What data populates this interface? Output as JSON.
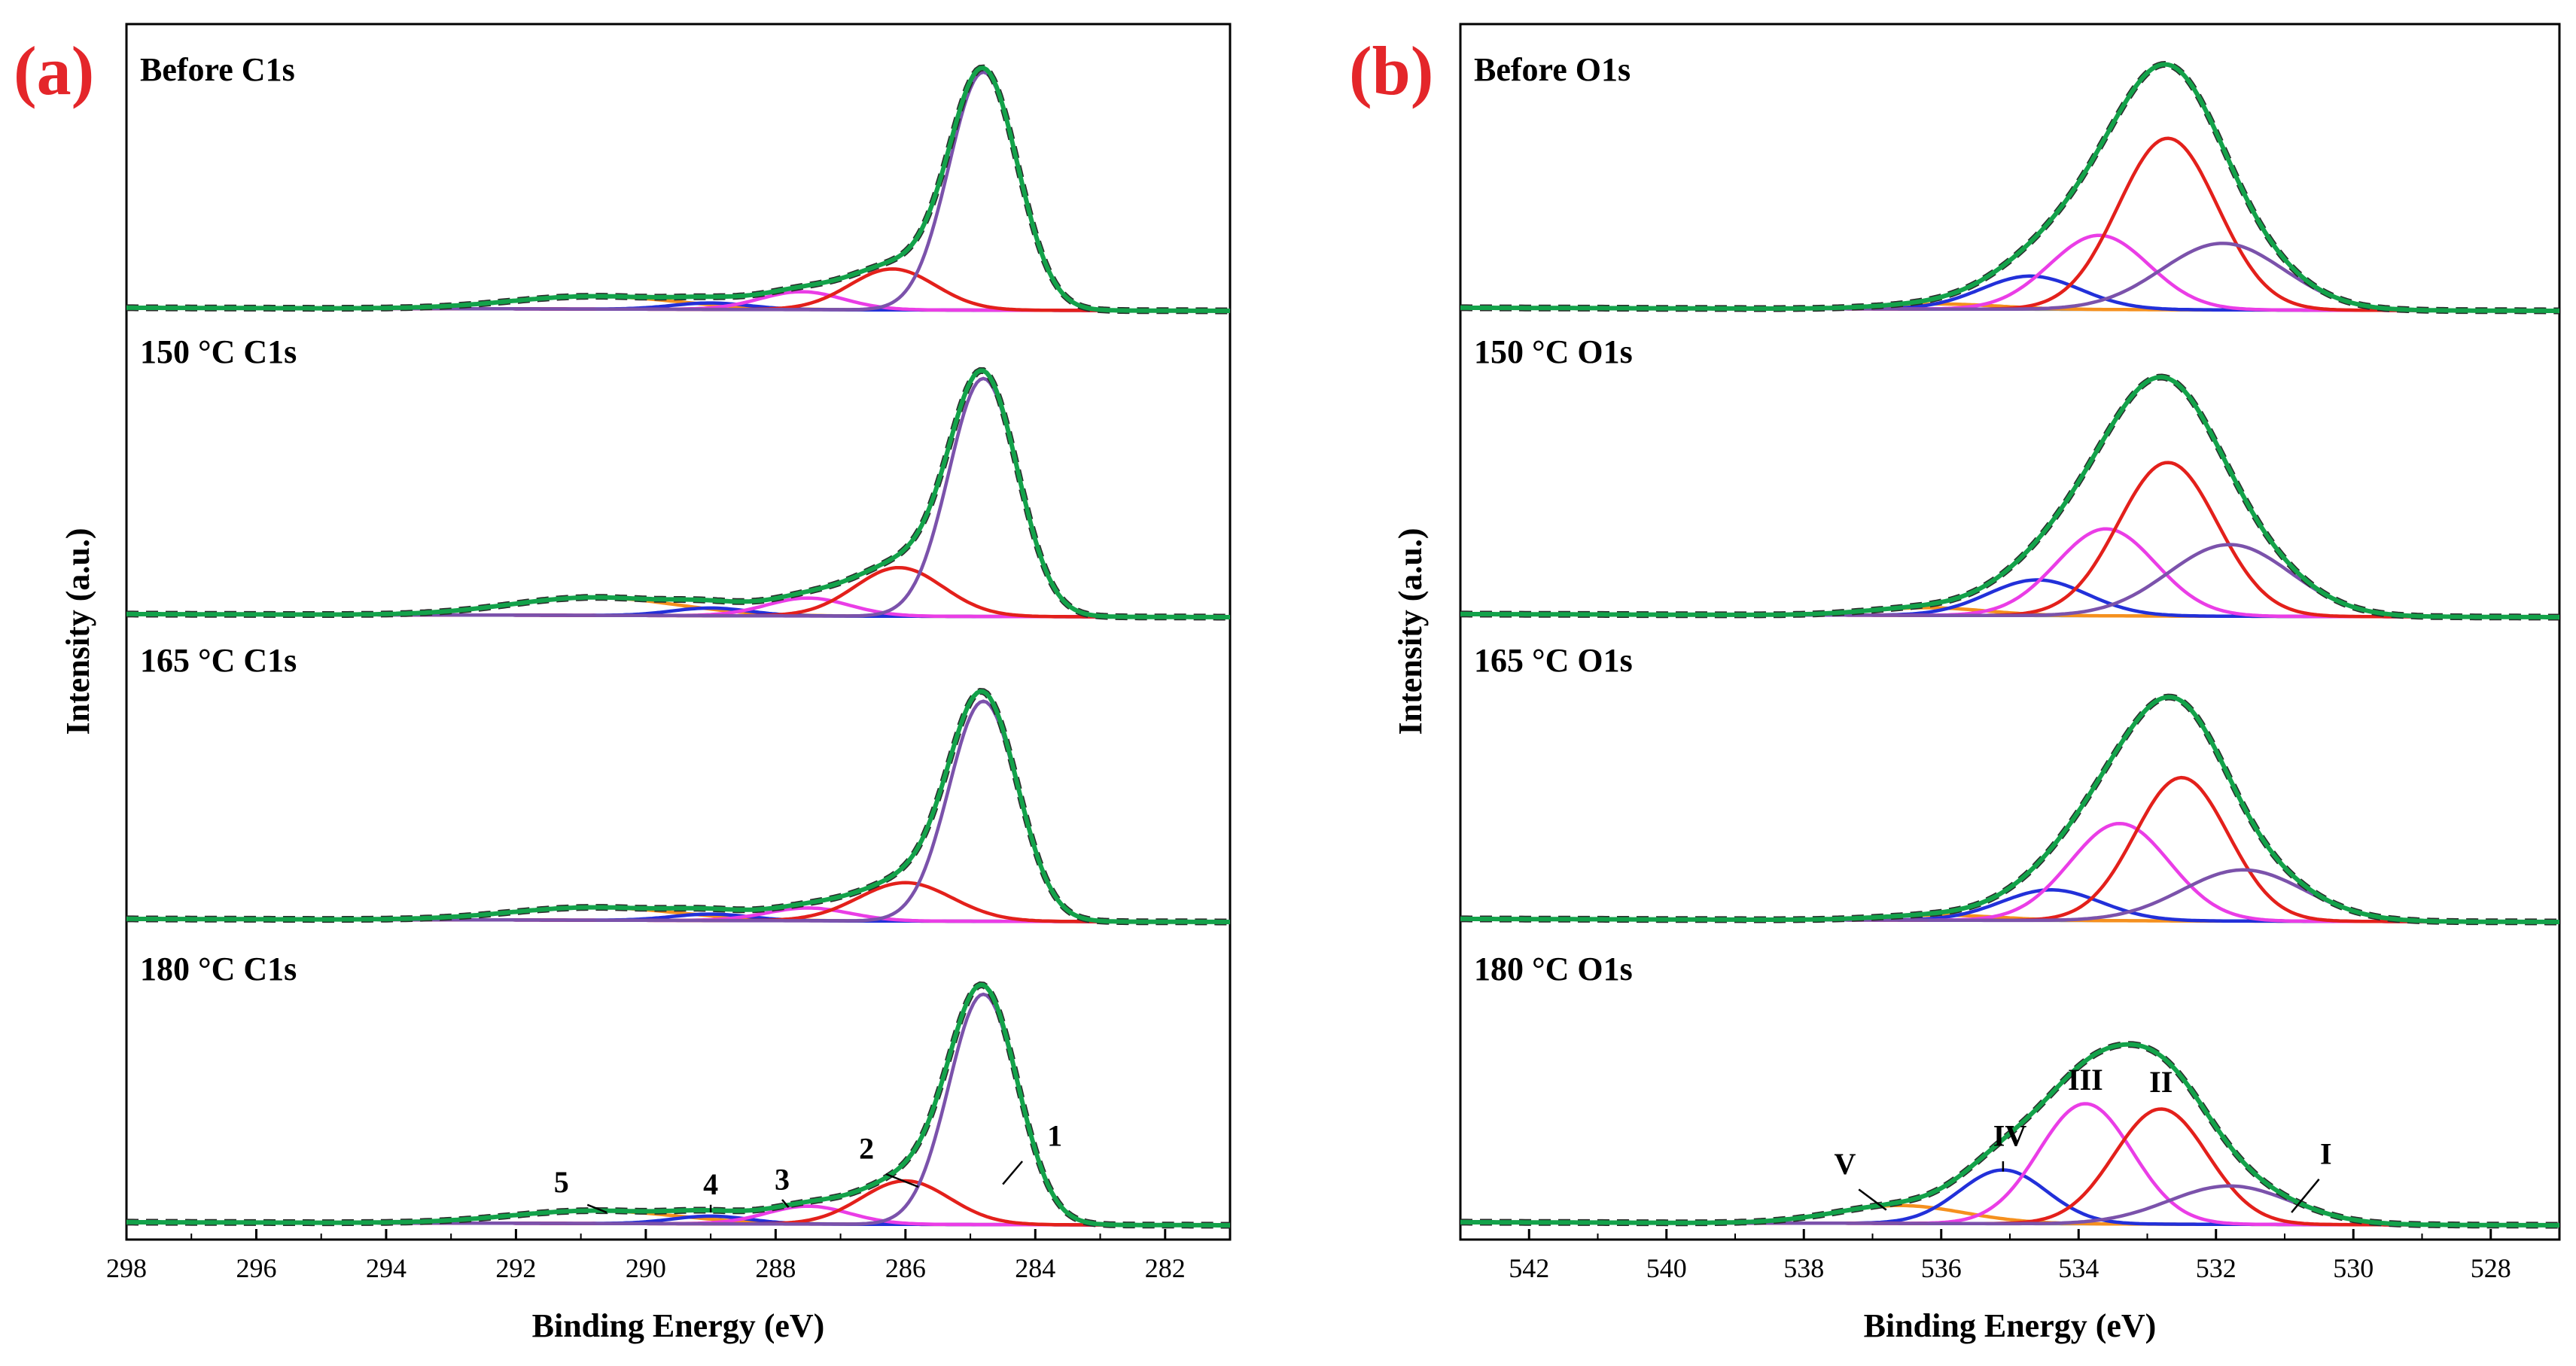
{
  "chart_data": [
    {
      "type": "line",
      "panel_label": "(a)",
      "xlabel": "Binding Energy (eV)",
      "ylabel": "Intensity (a.u.)",
      "xlim": [
        298,
        281
      ],
      "xticks": [
        "298",
        "296",
        "294",
        "292",
        "290",
        "288",
        "286",
        "284",
        "282"
      ],
      "series_colors": {
        "envelope": "#13a24a",
        "raw": "#2b2b2b",
        "baseline": "#8a8a8a",
        "1": "#7b52ab",
        "2": "#e3201b",
        "3": "#ea3de6",
        "4": "#2230d9",
        "5": "#f5901e"
      },
      "rows": [
        {
          "label": "Before C1s",
          "peaks": [
            {
              "name": "1",
              "center": 284.8,
              "amp": 0.93,
              "fwhm": 1.25
            },
            {
              "name": "2",
              "center": 286.2,
              "amp": 0.16,
              "fwhm": 1.55
            },
            {
              "name": "3",
              "center": 287.6,
              "amp": 0.07,
              "fwhm": 1.5
            },
            {
              "name": "4",
              "center": 289.0,
              "amp": 0.025,
              "fwhm": 1.4
            },
            {
              "name": "5",
              "center": 290.8,
              "amp": 0.05,
              "fwhm": 3.0
            }
          ]
        },
        {
          "label": "150 °C C1s",
          "peaks": [
            {
              "name": "1",
              "center": 284.8,
              "amp": 0.93,
              "fwhm": 1.25
            },
            {
              "name": "2",
              "center": 286.1,
              "amp": 0.19,
              "fwhm": 1.6
            },
            {
              "name": "3",
              "center": 287.5,
              "amp": 0.07,
              "fwhm": 1.5
            },
            {
              "name": "4",
              "center": 289.0,
              "amp": 0.03,
              "fwhm": 1.4
            },
            {
              "name": "5",
              "center": 290.8,
              "amp": 0.07,
              "fwhm": 3.0
            }
          ]
        },
        {
          "label": "165 °C C1s",
          "peaks": [
            {
              "name": "1",
              "center": 284.8,
              "amp": 0.86,
              "fwhm": 1.25
            },
            {
              "name": "2",
              "center": 286.0,
              "amp": 0.15,
              "fwhm": 1.7
            },
            {
              "name": "3",
              "center": 287.5,
              "amp": 0.05,
              "fwhm": 1.5
            },
            {
              "name": "4",
              "center": 289.0,
              "amp": 0.025,
              "fwhm": 1.4
            },
            {
              "name": "5",
              "center": 290.8,
              "amp": 0.05,
              "fwhm": 3.0
            }
          ]
        },
        {
          "label": "180 °C C1s",
          "peaks": [
            {
              "name": "1",
              "center": 284.8,
              "amp": 0.9,
              "fwhm": 1.25
            },
            {
              "name": "2",
              "center": 286.0,
              "amp": 0.17,
              "fwhm": 1.6
            },
            {
              "name": "3",
              "center": 287.5,
              "amp": 0.07,
              "fwhm": 1.5
            },
            {
              "name": "4",
              "center": 289.0,
              "amp": 0.03,
              "fwhm": 1.4
            },
            {
              "name": "5",
              "center": 290.8,
              "amp": 0.05,
              "fwhm": 3.0
            }
          ]
        }
      ],
      "annotations": {
        "row": 3,
        "labels": [
          {
            "text": "1",
            "x": 283.7,
            "y": 0.31,
            "lx1": 284.2,
            "ly1": 0.25,
            "lx2": 284.5,
            "ly2": 0.16
          },
          {
            "text": "2",
            "x": 286.6,
            "y": 0.26,
            "lx1": 286.3,
            "ly1": 0.2,
            "lx2": 285.8,
            "ly2": 0.15
          },
          {
            "text": "3",
            "x": 287.9,
            "y": 0.14,
            "lx1": 287.9,
            "ly1": 0.1,
            "lx2": 287.8,
            "ly2": 0.07
          },
          {
            "text": "4",
            "x": 289.0,
            "y": 0.12,
            "lx1": 289.0,
            "ly1": 0.08,
            "lx2": 289.0,
            "ly2": 0.05
          },
          {
            "text": "5",
            "x": 291.3,
            "y": 0.13,
            "lx1": 290.9,
            "ly1": 0.08,
            "lx2": 290.6,
            "ly2": 0.05
          }
        ]
      }
    },
    {
      "type": "line",
      "panel_label": "(b)",
      "xlabel": "Binding Energy (eV)",
      "ylabel": "Intensity (a.u.)",
      "xlim": [
        543,
        527
      ],
      "xticks": [
        "542",
        "540",
        "538",
        "536",
        "534",
        "532",
        "530",
        "528"
      ],
      "series_colors": {
        "envelope": "#13a24a",
        "raw": "#2b2b2b",
        "baseline": "#8a8a8a",
        "I": "#7b52ab",
        "II": "#e3201b",
        "III": "#ea3de6",
        "IV": "#2230d9",
        "V": "#f5901e"
      },
      "rows": [
        {
          "label": "Before O1s",
          "peaks": [
            {
              "name": "I",
              "center": 531.9,
              "amp": 0.26,
              "fwhm": 2.1
            },
            {
              "name": "II",
              "center": 532.7,
              "amp": 0.67,
              "fwhm": 1.7
            },
            {
              "name": "III",
              "center": 533.7,
              "amp": 0.29,
              "fwhm": 1.7
            },
            {
              "name": "IV",
              "center": 534.7,
              "amp": 0.13,
              "fwhm": 1.7
            },
            {
              "name": "V",
              "center": 536.0,
              "amp": 0.02,
              "fwhm": 2.0
            }
          ]
        },
        {
          "label": "150 °C O1s",
          "peaks": [
            {
              "name": "I",
              "center": 531.8,
              "amp": 0.28,
              "fwhm": 2.1
            },
            {
              "name": "II",
              "center": 532.7,
              "amp": 0.6,
              "fwhm": 1.7
            },
            {
              "name": "III",
              "center": 533.6,
              "amp": 0.34,
              "fwhm": 1.7
            },
            {
              "name": "IV",
              "center": 534.6,
              "amp": 0.14,
              "fwhm": 1.7
            },
            {
              "name": "V",
              "center": 536.2,
              "amp": 0.03,
              "fwhm": 2.0
            }
          ]
        },
        {
          "label": "165 °C O1s",
          "peaks": [
            {
              "name": "I",
              "center": 531.6,
              "amp": 0.2,
              "fwhm": 2.1
            },
            {
              "name": "II",
              "center": 532.5,
              "amp": 0.56,
              "fwhm": 1.6
            },
            {
              "name": "III",
              "center": 533.4,
              "amp": 0.38,
              "fwhm": 1.7
            },
            {
              "name": "IV",
              "center": 534.4,
              "amp": 0.12,
              "fwhm": 1.7
            },
            {
              "name": "V",
              "center": 536.0,
              "amp": 0.02,
              "fwhm": 2.0
            }
          ]
        },
        {
          "label": "180 °C O1s",
          "peaks": [
            {
              "name": "I",
              "center": 531.8,
              "amp": 0.15,
              "fwhm": 2.1
            },
            {
              "name": "II",
              "center": 532.8,
              "amp": 0.45,
              "fwhm": 1.6
            },
            {
              "name": "III",
              "center": 533.9,
              "amp": 0.47,
              "fwhm": 1.6
            },
            {
              "name": "IV",
              "center": 535.1,
              "amp": 0.21,
              "fwhm": 1.5
            },
            {
              "name": "V",
              "center": 536.6,
              "amp": 0.07,
              "fwhm": 2.2
            }
          ]
        }
      ],
      "annotations": {
        "row": 3,
        "labels": [
          {
            "text": "I",
            "x": 530.4,
            "y": 0.24,
            "lx1": 530.5,
            "ly1": 0.18,
            "lx2": 530.9,
            "ly2": 0.05
          },
          {
            "text": "II",
            "x": 532.8,
            "y": 0.52,
            "lx1": null,
            "ly1": null,
            "lx2": null,
            "ly2": null
          },
          {
            "text": "III",
            "x": 533.9,
            "y": 0.53,
            "lx1": null,
            "ly1": null,
            "lx2": null,
            "ly2": null
          },
          {
            "text": "IV",
            "x": 535.0,
            "y": 0.31,
            "lx1": 535.1,
            "ly1": 0.25,
            "lx2": 535.1,
            "ly2": 0.21
          },
          {
            "text": "V",
            "x": 537.4,
            "y": 0.2,
            "lx1": 537.2,
            "ly1": 0.14,
            "lx2": 536.8,
            "ly2": 0.06
          }
        ]
      }
    }
  ]
}
